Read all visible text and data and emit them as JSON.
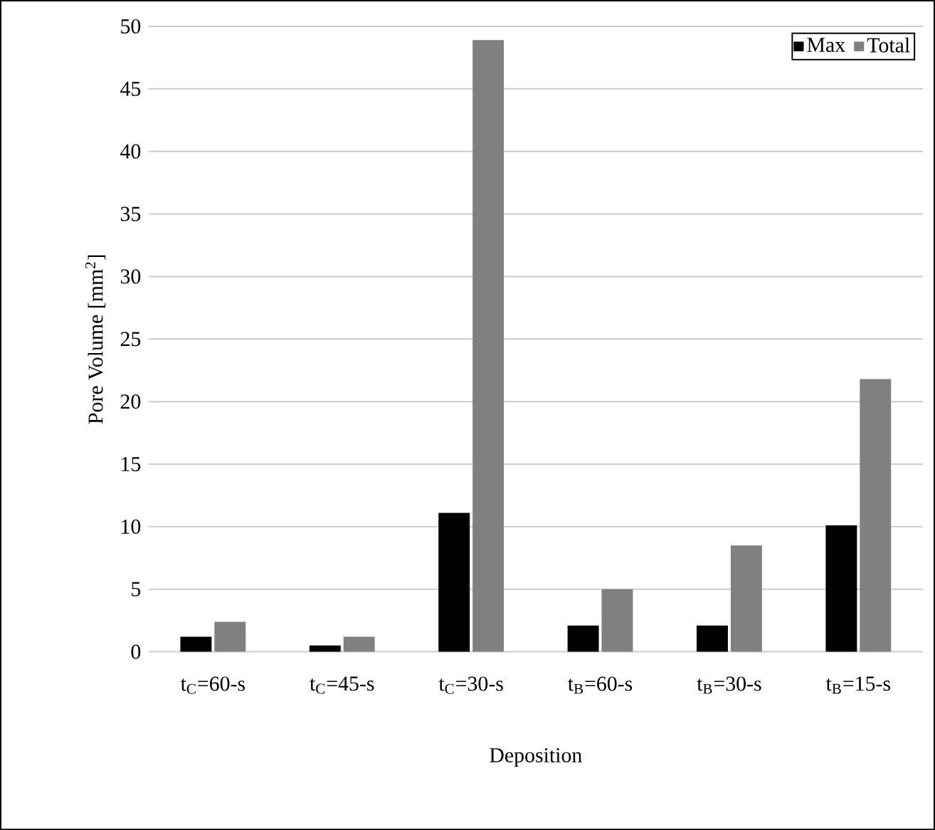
{
  "chart_data": {
    "type": "bar",
    "xlabel": "Deposition",
    "ylabel": "Pore Volume [mm$^{2}$]",
    "categories": [
      "t$_{C}$=60-s",
      "t$_{C}$=45-s",
      "t$_{C}$=30-s",
      "t$_{B}$=60-s",
      "t$_{B}$=30-s",
      "t$_{B}$=15-s"
    ],
    "series": [
      {
        "name": "Max",
        "color": "#000000",
        "values": [
          1.2,
          0.5,
          11.1,
          2.1,
          2.1,
          10.1
        ]
      },
      {
        "name": "Total",
        "color": "#808080",
        "values": [
          2.4,
          1.2,
          48.9,
          5.0,
          8.5,
          21.8
        ]
      }
    ],
    "ylim": [
      0,
      50
    ],
    "yticks": [
      0,
      5,
      10,
      15,
      20,
      25,
      30,
      35,
      40,
      45,
      50
    ],
    "grid": "y",
    "legend": "top right"
  }
}
